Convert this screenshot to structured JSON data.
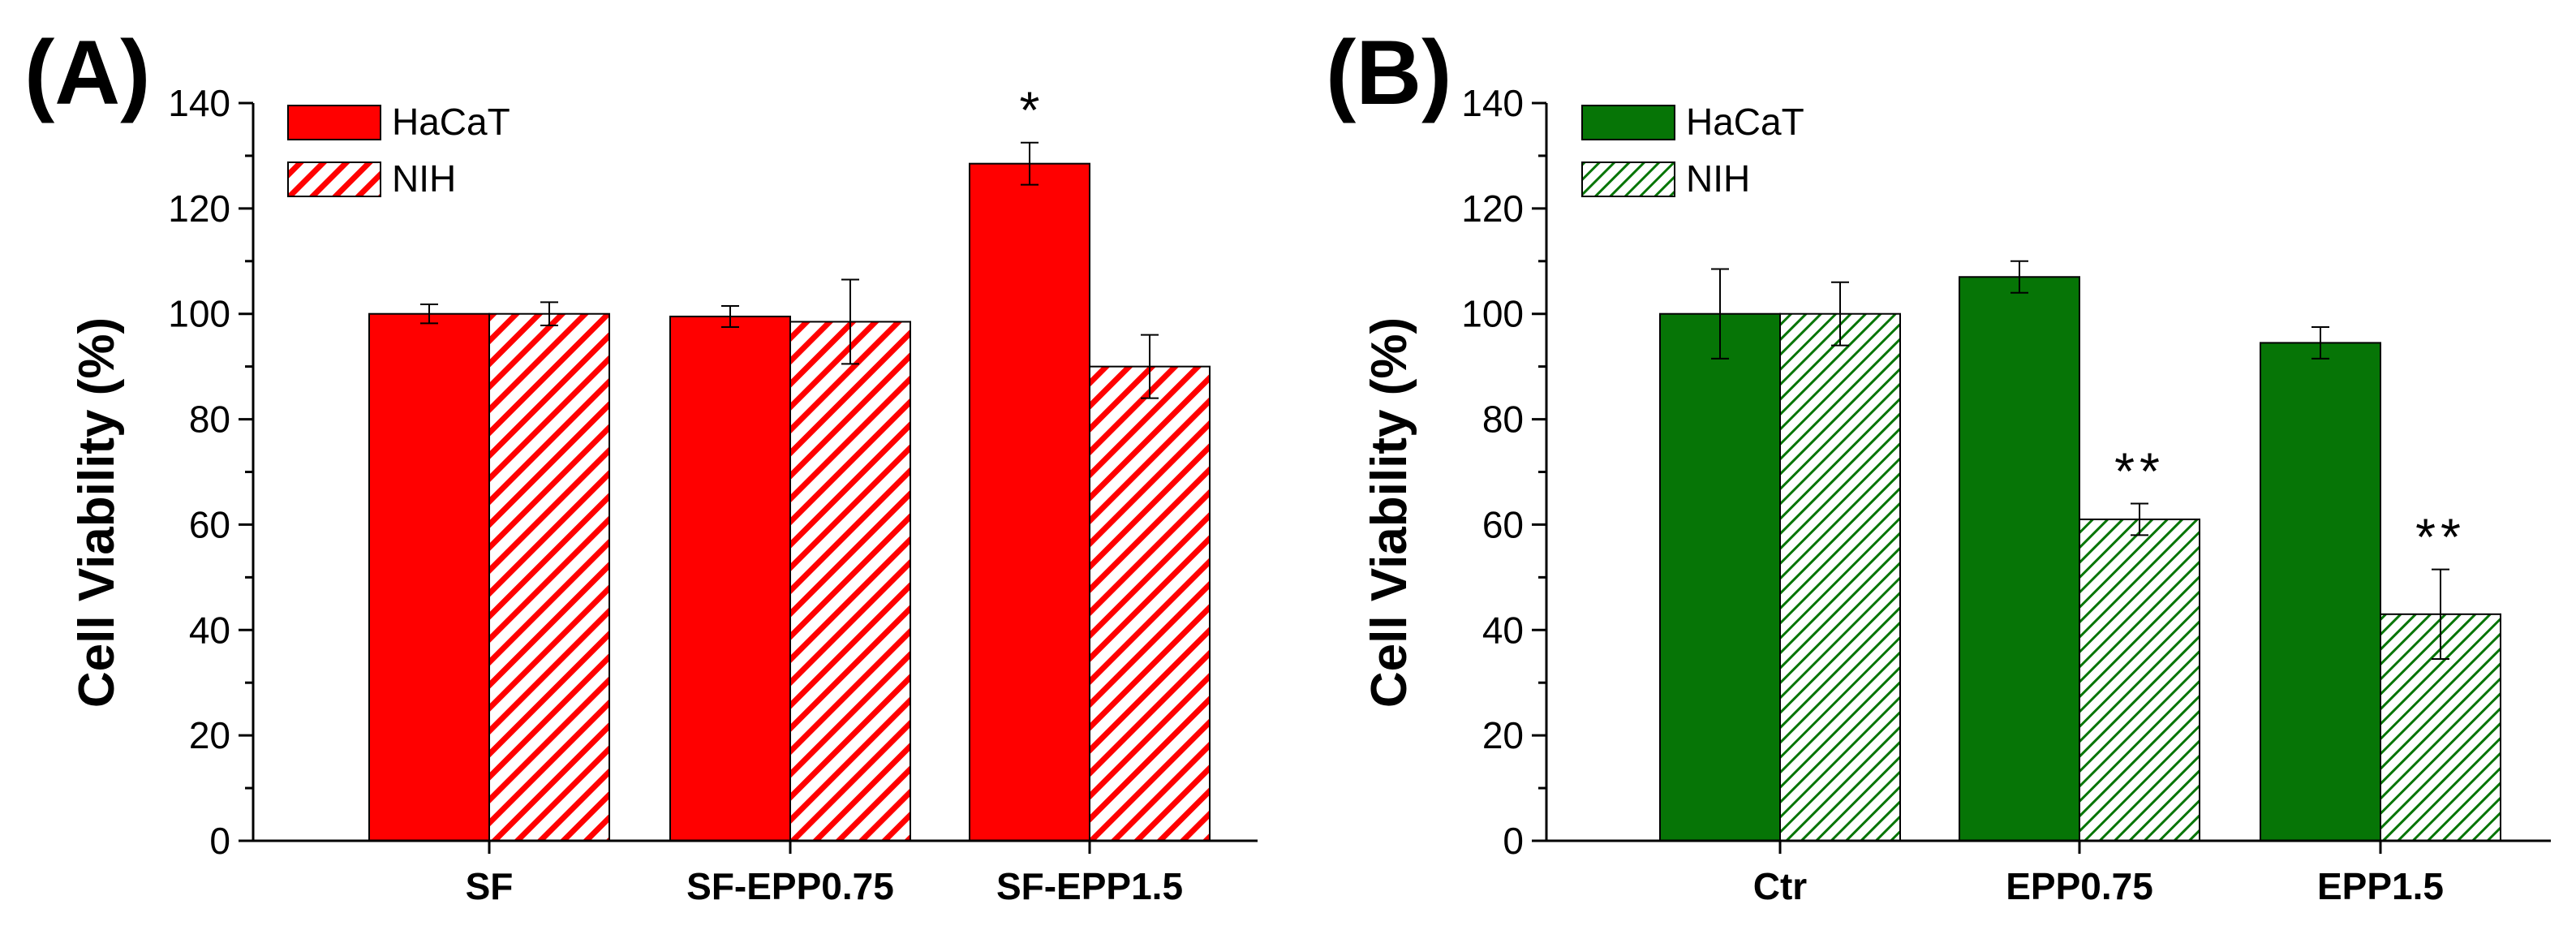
{
  "chart_data": [
    {
      "panel_label": "(A)",
      "type": "bar",
      "ylabel": "Cell Viability (%)",
      "xlabel": "",
      "ylim": [
        0,
        140
      ],
      "yticks": [
        0,
        20,
        40,
        60,
        80,
        100,
        120,
        140
      ],
      "ytick_labels": [
        "0",
        "20",
        "40",
        "60",
        "80",
        "100",
        "120",
        "140"
      ],
      "categories": [
        "SF",
        "SF-EPP0.75",
        "SF-EPP1.5"
      ],
      "legend_position": "top-left",
      "series": [
        {
          "name": "HaCaT",
          "color": "#ff0000",
          "pattern": "solid",
          "values": [
            100,
            99.5,
            128.5
          ],
          "errors": [
            1.8,
            2.0,
            4.0
          ],
          "annotations": [
            "",
            "",
            "*"
          ]
        },
        {
          "name": "NIH",
          "color": "#ff0000",
          "pattern": "hatch",
          "values": [
            100,
            98.5,
            90
          ],
          "errors": [
            2.2,
            8.0,
            6.0
          ],
          "annotations": [
            "",
            "",
            ""
          ]
        }
      ]
    },
    {
      "panel_label": "(B)",
      "type": "bar",
      "ylabel": "Cell Viability (%)",
      "xlabel": "",
      "ylim": [
        0,
        140
      ],
      "yticks": [
        0,
        20,
        40,
        60,
        80,
        100,
        120,
        140
      ],
      "ytick_labels": [
        "0",
        "20",
        "40",
        "60",
        "80",
        "100",
        "120",
        "140"
      ],
      "categories": [
        "Ctr",
        "EPP0.75",
        "EPP1.5"
      ],
      "legend_position": "top-left",
      "series": [
        {
          "name": "HaCaT",
          "color": "#067506",
          "pattern": "solid",
          "values": [
            100,
            107,
            94.5
          ],
          "errors": [
            8.5,
            3.0,
            3.0
          ],
          "annotations": [
            "",
            "",
            ""
          ]
        },
        {
          "name": "NIH",
          "color": "#067506",
          "pattern": "hatch",
          "values": [
            100,
            61,
            43
          ],
          "errors": [
            6.0,
            3.0,
            8.5
          ],
          "annotations": [
            "",
            "**",
            "**"
          ]
        }
      ]
    }
  ]
}
